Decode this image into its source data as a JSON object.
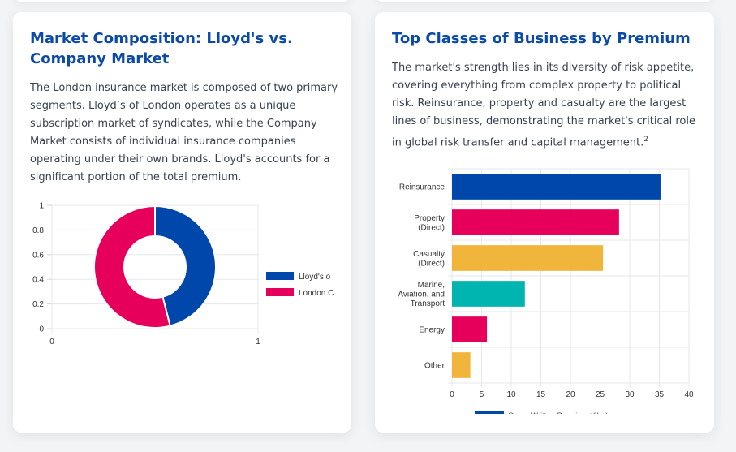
{
  "left_card": {
    "title": "Market Composition: Lloyd's vs. Company Market",
    "description": "The London insurance market is composed of two primary segments. Lloyd’s of London operates as a unique subscription market of syndicates, while the Company Market consists of individual insurance companies operating under their own brands. Lloyd's accounts for a significant portion of the total premium."
  },
  "right_card": {
    "title": "Top Classes of Business by Premium",
    "description": "The market's strength lies in its diversity of risk appetite, covering everything from complex property to political risk. Reinsurance, property and casualty are the largest lines of business, demonstrating the market's critical role in global risk transfer and capital management.",
    "footnote": "2"
  },
  "chart_data": [
    {
      "type": "pie",
      "variant": "doughnut",
      "categories": [
        "Lloyd's o",
        "London C"
      ],
      "values": [
        46,
        54
      ],
      "colors": [
        "#0047ab",
        "#e6005c"
      ],
      "legend_position": "right",
      "y_ticks": [
        "0",
        "0.2",
        "0.4",
        "0.6",
        "0.8",
        "1"
      ],
      "x_ticks": [
        "0",
        "1"
      ],
      "grid": true
    },
    {
      "type": "bar",
      "orientation": "horizontal",
      "categories": [
        [
          "Reinsurance"
        ],
        [
          "Property",
          "(Direct)"
        ],
        [
          "Casualty",
          "(Direct)"
        ],
        [
          "Marine,",
          "Aviation, and",
          "Transport"
        ],
        [
          "Energy"
        ],
        [
          "Other"
        ]
      ],
      "series": [
        {
          "name": "Gross Written Premium (£bn)",
          "values": [
            35.2,
            28.2,
            25.5,
            12.3,
            5.9,
            3.1
          ]
        }
      ],
      "colors": [
        "#0047ab",
        "#e6005c",
        "#f2b53c",
        "#00b5b0",
        "#e6005c",
        "#f2b53c"
      ],
      "legend_color": "#0047ab",
      "xlim": [
        0,
        40
      ],
      "x_ticks": [
        "0",
        "5",
        "10",
        "15",
        "20",
        "25",
        "30",
        "35",
        "40"
      ],
      "legend_position": "bottom",
      "grid": true
    }
  ]
}
